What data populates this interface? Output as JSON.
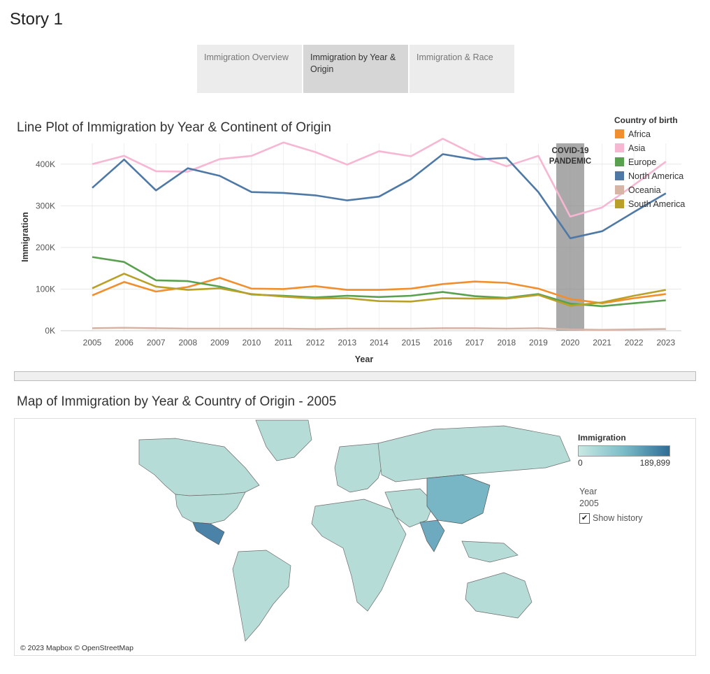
{
  "story": {
    "title": "Story 1"
  },
  "tabs": [
    {
      "label": "Immigration Overview",
      "active": false
    },
    {
      "label": "Immigration by Year & Origin",
      "active": true
    },
    {
      "label": "Immigration & Race",
      "active": false
    }
  ],
  "line_section": {
    "title": "Line Plot of Immigration by Year & Continent of Origin"
  },
  "chart_data": {
    "type": "line",
    "title": "Line Plot of Immigration by Year & Continent of Origin",
    "xlabel": "Year",
    "ylabel": "Immigration",
    "x": [
      2005,
      2006,
      2007,
      2008,
      2009,
      2010,
      2011,
      2012,
      2013,
      2014,
      2015,
      2016,
      2017,
      2018,
      2019,
      2020,
      2021,
      2022,
      2023
    ],
    "ylim": [
      0,
      450000
    ],
    "yticks": [
      0,
      100000,
      200000,
      300000,
      400000
    ],
    "ytick_labels": [
      "0K",
      "100K",
      "200K",
      "300K",
      "400K"
    ],
    "grid": true,
    "legend_title": "Country of birth",
    "legend_position": "top-right",
    "annotation": {
      "text_line1": "COVID-19",
      "text_line2": "PANDEMIC",
      "x": 2020
    },
    "series": [
      {
        "name": "Africa",
        "color": "#f28e2b",
        "values": [
          85000,
          117000,
          94000,
          105000,
          127000,
          101000,
          100000,
          107000,
          98000,
          98000,
          101000,
          112000,
          118000,
          115000,
          101000,
          76000,
          66000,
          78000,
          88000
        ]
      },
      {
        "name": "Asia",
        "color": "#f7b6d2",
        "values": [
          400000,
          420000,
          383000,
          382000,
          412000,
          420000,
          452000,
          429000,
          399000,
          431000,
          419000,
          461000,
          423000,
          395000,
          420000,
          274000,
          296000,
          350000,
          406000
        ]
      },
      {
        "name": "Europe",
        "color": "#59a14f",
        "values": [
          177000,
          165000,
          121000,
          119000,
          106000,
          87000,
          84000,
          80000,
          84000,
          81000,
          84000,
          93000,
          83000,
          79000,
          88000,
          65000,
          59000,
          66000,
          73000
        ]
      },
      {
        "name": "North America",
        "color": "#4e79a7",
        "values": [
          343000,
          411000,
          337000,
          390000,
          372000,
          333000,
          331000,
          325000,
          313000,
          322000,
          364000,
          424000,
          411000,
          415000,
          333000,
          222000,
          239000,
          285000,
          330000
        ]
      },
      {
        "name": "Oceania",
        "color": "#d7b5a6",
        "values": [
          6000,
          7000,
          6000,
          5000,
          5000,
          5000,
          5000,
          4000,
          5000,
          5000,
          5000,
          6000,
          6000,
          5000,
          6000,
          3000,
          2000,
          3000,
          4000
        ]
      },
      {
        "name": "South America",
        "color": "#b9a028",
        "values": [
          102000,
          137000,
          106000,
          98000,
          102000,
          88000,
          82000,
          77000,
          78000,
          71000,
          70000,
          78000,
          77000,
          77000,
          86000,
          60000,
          68000,
          84000,
          98000
        ]
      }
    ]
  },
  "map_section": {
    "title": "Map of Immigration by Year & Country of Origin - 2005"
  },
  "map": {
    "attribution": "© 2023 Mapbox © OpenStreetMap",
    "legend_title": "Immigration",
    "legend_min": "0",
    "legend_max": "189,899",
    "color_low": "#c9e8e3",
    "color_high": "#2f6d96",
    "year_label": "Year",
    "year_value": "2005",
    "show_history_label": "Show history",
    "show_history_checked": "✔"
  }
}
